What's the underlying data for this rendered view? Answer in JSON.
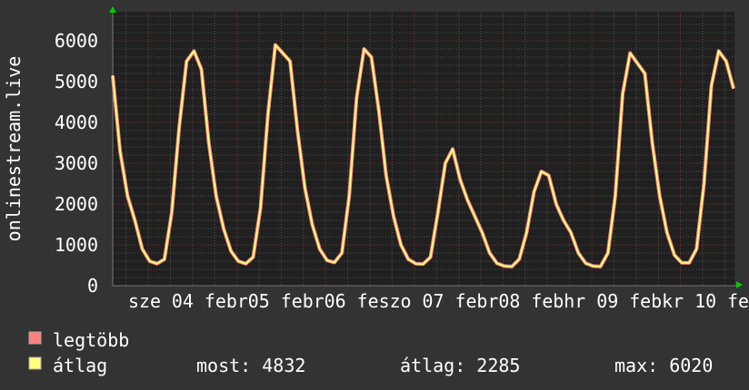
{
  "chart_data": {
    "type": "line",
    "ylabel": "onlinestream.live",
    "ylim": [
      0,
      6667
    ],
    "yticks": [
      "0",
      "1000",
      "2000",
      "3000",
      "4000",
      "5000",
      "6000"
    ],
    "ytick_values": [
      0,
      1000,
      2000,
      3000,
      4000,
      5000,
      6000
    ],
    "xtick_text": "sze 04 febr05 febr06 feszo 07 febr08 febhr 09 febkr 10 fe",
    "sample_interval": "2 hours",
    "grid": true,
    "series": [
      {
        "name": "legtöbb",
        "color": "#ff7f7f"
      },
      {
        "name": "átlag",
        "color": "#ffff80"
      }
    ],
    "values": [
      5150,
      3300,
      2200,
      1600,
      900,
      600,
      540,
      650,
      1800,
      3900,
      5500,
      5750,
      5300,
      3500,
      2200,
      1400,
      850,
      600,
      540,
      700,
      1900,
      4200,
      5900,
      5700,
      5500,
      3800,
      2400,
      1500,
      900,
      620,
      570,
      800,
      2200,
      4600,
      5800,
      5600,
      4300,
      2700,
      1700,
      1000,
      650,
      540,
      530,
      700,
      1800,
      3000,
      3350,
      2600,
      2100,
      1700,
      1300,
      800,
      550,
      480,
      470,
      650,
      1300,
      2300,
      2800,
      2700,
      2000,
      1600,
      1300,
      800,
      550,
      480,
      470,
      800,
      2200,
      4700,
      5700,
      5450,
      5200,
      3500,
      2200,
      1300,
      750,
      560,
      560,
      900,
      2500,
      4900,
      5750,
      5500,
      4832
    ]
  },
  "legend": {
    "items": [
      {
        "label": "legtöbb",
        "color": "#ff7f7f"
      },
      {
        "label": "átlag",
        "color": "#ffff80"
      }
    ],
    "stats": {
      "most": "most: 4832",
      "atlag": "átlag: 2285",
      "max": "max: 6020"
    }
  }
}
